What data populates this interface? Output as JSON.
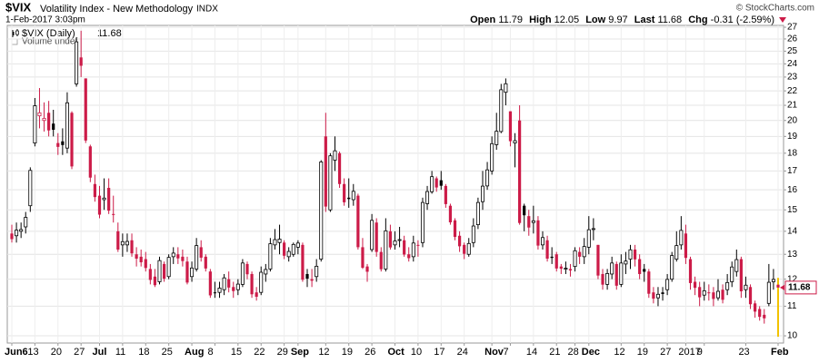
{
  "chart_data": {
    "type": "candlestick",
    "title": "$VIX",
    "subtitle": "Volatility Index - New Methodology",
    "exchange": "INDX",
    "date": "1-Feb-2017 3:03pm",
    "credit": "© StockCharts.com",
    "quote_labels": [
      "Open",
      "High",
      "Low",
      "Last",
      "Chg"
    ],
    "change": -0.31,
    "change_pct": "(-2.59%)",
    "legend_label": "$VIX (Daily)",
    "volume_note": "Volume undef",
    "log_scale": true,
    "grid": true,
    "up_color": "#000000",
    "down_color": "#cc1b48",
    "last_wick_color": "#f2c200",
    "ylim": [
      9.77,
      27.16
    ],
    "yticks": [
      10,
      11,
      12,
      13,
      14,
      15,
      16,
      17,
      18,
      19,
      20,
      21,
      22,
      23,
      24,
      25,
      26,
      27
    ],
    "categories": [
      "Jun6",
      null,
      null,
      null,
      null,
      "13",
      null,
      null,
      null,
      null,
      "20",
      null,
      null,
      null,
      null,
      "27",
      null,
      null,
      null,
      "Jul",
      null,
      null,
      null,
      null,
      "11",
      null,
      null,
      null,
      null,
      "18",
      null,
      null,
      null,
      null,
      "25",
      null,
      null,
      null,
      null,
      "Aug",
      null,
      null,
      null,
      null,
      "8",
      null,
      null,
      null,
      null,
      "15",
      null,
      null,
      null,
      null,
      "22",
      null,
      null,
      null,
      null,
      "29",
      null,
      null,
      "Sep",
      null,
      null,
      null,
      null,
      null,
      "12",
      null,
      null,
      null,
      null,
      "19",
      null,
      null,
      null,
      null,
      "26",
      null,
      null,
      null,
      null,
      "Oct",
      null,
      null,
      null,
      null,
      "10",
      null,
      null,
      null,
      null,
      "17",
      null,
      null,
      null,
      null,
      "24",
      null,
      null,
      null,
      null,
      null,
      "Nov",
      null,
      null,
      null,
      "7",
      null,
      null,
      null,
      null,
      "14",
      null,
      null,
      null,
      null,
      "21",
      null,
      null,
      null,
      "28",
      null,
      null,
      "Dec",
      null,
      null,
      null,
      null,
      null,
      null,
      "12",
      null,
      null,
      null,
      null,
      "19",
      null,
      null,
      null,
      null,
      "27",
      null,
      null,
      null,
      "2017",
      null,
      null,
      null,
      "9",
      null,
      null,
      null,
      null,
      null,
      null,
      null,
      null,
      "23",
      null,
      null,
      null,
      null,
      null,
      null,
      "Feb"
    ],
    "open": [
      13.9,
      13.8,
      14.0,
      14.2,
      15.2,
      18.6,
      20.3,
      20.0,
      20.5,
      19.8,
      18.6,
      18.7,
      18.3,
      20.5,
      22.5,
      24.5,
      22.9,
      18.4,
      16.3,
      15.7,
      15.5,
      16.1,
      14.8,
      14.0,
      13.4,
      13.4,
      13.6,
      13.0,
      12.9,
      12.8,
      12.4,
      12.1,
      11.9,
      12.6,
      12.1,
      12.9,
      13.0,
      12.9,
      12.7,
      12.1,
      12.4,
      13.3,
      12.9,
      12.3,
      11.5,
      11.5,
      11.6,
      12.0,
      11.7,
      11.6,
      11.8,
      12.6,
      12.2,
      11.5,
      11.5,
      12.2,
      12.4,
      13.4,
      13.5,
      13.5,
      12.9,
      13.0,
      13.3,
      13.4,
      12.2,
      12.0,
      12.1,
      12.8,
      19.0,
      15.0,
      17.6,
      18.0,
      16.3,
      15.6,
      15.5,
      15.7,
      13.3,
      12.5,
      13.2,
      14.4,
      13.1,
      12.4,
      14.0,
      13.4,
      13.6,
      13.6,
      13.0,
      12.9,
      13.4,
      13.5,
      15.3,
      15.9,
      16.6,
      16.5,
      16.2,
      15.2,
      14.5,
      13.8,
      13.4,
      13.0,
      13.5,
      14.3,
      15.4,
      16.2,
      17.0,
      18.5,
      19.3,
      21.9,
      20.6,
      18.6,
      20.0,
      15.2,
      14.7,
      14.4,
      14.5,
      13.4,
      13.6,
      12.9,
      13.0,
      12.5,
      12.4,
      12.4,
      12.5,
      13.1,
      12.9,
      13.3,
      14.1,
      13.4,
      12.2,
      11.8,
      12.2,
      12.6,
      11.8,
      12.6,
      12.8,
      13.2,
      12.8,
      12.4,
      12.3,
      11.5,
      11.3,
      11.5,
      11.6,
      12.0,
      12.8,
      13.4,
      13.9,
      12.8,
      11.9,
      11.7,
      11.4,
      11.5,
      11.5,
      11.3,
      11.6,
      11.6,
      11.9,
      12.3,
      12.8,
      11.6,
      11.7,
      11.1,
      10.9,
      10.7,
      11.1,
      11.9,
      11.79
    ],
    "high": [
      14.3,
      14.4,
      14.4,
      14.9,
      17.2,
      21.5,
      22.2,
      21.2,
      21.3,
      20.7,
      19.2,
      19.5,
      21.9,
      20.6,
      26.1,
      26.7,
      22.9,
      18.5,
      16.8,
      16.2,
      16.6,
      16.6,
      15.7,
      14.4,
      13.9,
      13.9,
      13.9,
      13.3,
      13.2,
      13.1,
      12.6,
      12.4,
      12.9,
      12.7,
      13.0,
      13.3,
      13.3,
      13.2,
      12.9,
      12.7,
      13.7,
      13.6,
      13.0,
      12.4,
      11.9,
      11.9,
      12.2,
      12.3,
      11.9,
      12.0,
      12.8,
      12.7,
      12.3,
      11.7,
      12.5,
      12.6,
      13.7,
      14.1,
      14.3,
      13.6,
      13.3,
      13.5,
      13.6,
      13.5,
      12.4,
      12.4,
      12.8,
      17.6,
      20.5,
      18.0,
      19.0,
      18.1,
      16.6,
      16.6,
      16.3,
      15.8,
      13.7,
      12.6,
      14.8,
      14.6,
      13.3,
      14.6,
      14.3,
      14.0,
      14.2,
      13.8,
      13.3,
      13.8,
      13.6,
      15.6,
      16.2,
      17.0,
      16.7,
      17.0,
      16.3,
      15.3,
      14.6,
      14.0,
      13.5,
      13.7,
      14.6,
      15.6,
      17.0,
      17.5,
      19.0,
      20.5,
      22.5,
      22.9,
      20.6,
      19.2,
      21.0,
      15.3,
      15.0,
      15.2,
      14.7,
      14.0,
      13.8,
      13.3,
      13.1,
      12.6,
      12.7,
      12.6,
      13.3,
      13.3,
      13.7,
      14.7,
      14.6,
      13.4,
      12.4,
      12.4,
      12.9,
      12.7,
      13.0,
      13.1,
      13.4,
      13.4,
      13.0,
      12.6,
      12.4,
      11.7,
      11.7,
      11.7,
      12.2,
      13.1,
      14.0,
      14.7,
      14.3,
      12.9,
      12.1,
      11.9,
      11.9,
      11.8,
      11.7,
      12.0,
      11.8,
      12.2,
      12.7,
      13.2,
      12.9,
      12.1,
      11.8,
      11.2,
      11.0,
      10.9,
      12.6,
      12.4,
      12.05
    ],
    "low": [
      13.5,
      13.5,
      13.7,
      13.9,
      14.9,
      18.4,
      19.5,
      19.3,
      19.0,
      19.0,
      17.9,
      17.9,
      18.0,
      17.1,
      22.3,
      23.0,
      18.6,
      16.4,
      15.4,
      14.6,
      15.0,
      14.8,
      14.4,
      13.1,
      12.9,
      13.1,
      12.9,
      12.5,
      12.5,
      12.3,
      11.8,
      11.7,
      11.8,
      11.9,
      12.0,
      12.6,
      12.6,
      12.5,
      11.8,
      11.9,
      12.3,
      12.7,
      12.3,
      11.3,
      11.3,
      11.3,
      11.4,
      11.5,
      11.3,
      11.4,
      11.7,
      12.0,
      11.3,
      11.2,
      11.4,
      11.9,
      12.3,
      13.2,
      13.0,
      12.8,
      12.7,
      12.9,
      13.0,
      11.9,
      11.7,
      11.7,
      11.9,
      12.7,
      14.9,
      14.9,
      17.0,
      16.1,
      15.2,
      15.1,
      15.2,
      13.2,
      12.4,
      11.9,
      13.1,
      12.9,
      12.3,
      12.3,
      13.2,
      13.2,
      13.3,
      12.9,
      12.7,
      12.7,
      12.9,
      13.3,
      15.0,
      15.8,
      15.9,
      16.0,
      15.1,
      14.3,
      13.6,
      13.1,
      12.8,
      12.9,
      13.3,
      14.1,
      15.0,
      16.0,
      16.8,
      18.2,
      19.2,
      21.0,
      18.4,
      17.2,
      14.3,
      14.0,
      13.8,
      13.9,
      13.2,
      13.2,
      12.7,
      12.6,
      12.3,
      12.2,
      12.2,
      12.1,
      12.3,
      12.6,
      12.6,
      13.0,
      13.6,
      12.0,
      11.6,
      11.6,
      12.0,
      11.6,
      11.7,
      12.2,
      12.4,
      12.5,
      12.0,
      11.9,
      11.3,
      11.1,
      11.0,
      11.2,
      11.4,
      11.9,
      12.7,
      13.2,
      12.6,
      11.6,
      11.4,
      11.0,
      11.2,
      11.2,
      11.0,
      11.2,
      11.1,
      11.4,
      11.7,
      12.1,
      11.3,
      11.3,
      10.9,
      10.6,
      10.5,
      10.4,
      11.0,
      11.6,
      9.97
    ],
    "close": [
      13.65,
      14.05,
      14.08,
      14.64,
      17.03,
      20.97,
      20.5,
      20.14,
      19.37,
      19.41,
      18.37,
      18.48,
      21.17,
      17.25,
      25.76,
      23.85,
      18.75,
      16.64,
      15.63,
      14.77,
      15.58,
      14.96,
      14.76,
      13.2,
      13.54,
      13.55,
      13.04,
      12.82,
      12.67,
      12.44,
      11.97,
      11.77,
      12.74,
      12.02,
      12.87,
      13.05,
      12.83,
      12.72,
      11.87,
      12.44,
      13.37,
      12.86,
      12.42,
      11.39,
      11.5,
      11.66,
      12.05,
      11.68,
      11.55,
      11.81,
      12.64,
      12.19,
      11.43,
      11.34,
      12.27,
      12.38,
      13.45,
      13.63,
      13.65,
      12.94,
      13.12,
      13.42,
      13.48,
      11.98,
      12.02,
      11.94,
      12.51,
      17.5,
      15.16,
      17.85,
      18.14,
      16.3,
      15.37,
      15.53,
      15.92,
      13.3,
      12.45,
      12.29,
      14.5,
      13.1,
      12.39,
      14.02,
      13.29,
      13.57,
      13.63,
      12.99,
      12.84,
      13.48,
      13.38,
      15.36,
      15.91,
      16.69,
      16.12,
      16.21,
      15.28,
      14.41,
      13.75,
      13.34,
      13.02,
      13.46,
      14.24,
      15.36,
      16.19,
      17.06,
      18.56,
      19.32,
      22.08,
      22.51,
      18.71,
      18.74,
      14.38,
      14.74,
      14.17,
      14.48,
      13.37,
      13.72,
      12.82,
      12.85,
      12.42,
      12.41,
      12.43,
      12.34,
      13.15,
      12.9,
      13.33,
      14.07,
      14.12,
      12.14,
      11.79,
      12.22,
      12.64,
      11.75,
      12.64,
      12.72,
      13.19,
      12.79,
      12.2,
      12.29,
      11.45,
      11.27,
      11.43,
      11.44,
      11.99,
      12.95,
      13.37,
      14.04,
      12.85,
      11.85,
      11.67,
      11.32,
      11.56,
      11.49,
      11.26,
      11.54,
      11.23,
      11.87,
      12.48,
      12.78,
      11.54,
      11.77,
      11.07,
      10.81,
      10.63,
      10.58,
      11.88,
      11.99,
      11.68
    ]
  }
}
